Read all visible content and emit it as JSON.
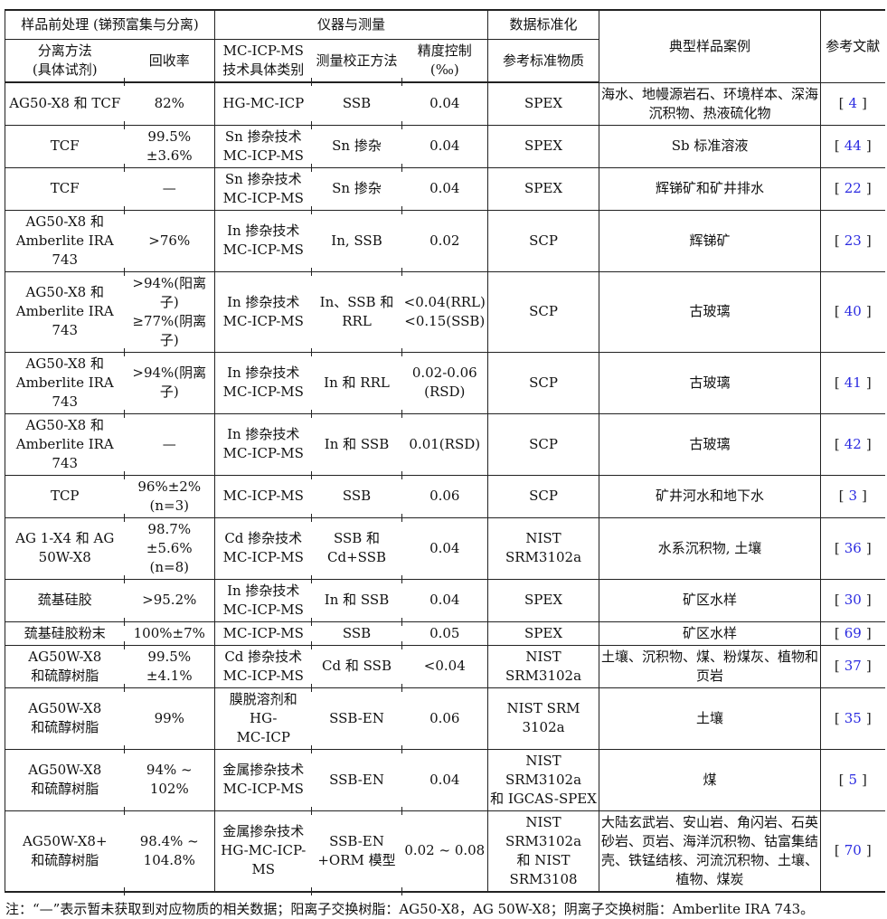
{
  "colors": {
    "reference_link": "#2a2ae0",
    "border": "#222222",
    "text": "#111111",
    "background": "#ffffff"
  },
  "ref_style": {
    "open": "[",
    "close": "]"
  },
  "table": {
    "header": {
      "groups": {
        "pretreatment": "样品前处理 (锑预富集与分离)",
        "instrument": "仪器与测量",
        "standardization": "数据标准化",
        "samples": "典型样品案例",
        "reference": "参考文献"
      },
      "columns": {
        "method": "分离方法\n(具体试剂)",
        "recovery": "回收率",
        "technique": "MC-ICP-MS\n技术具体类别",
        "correction": "测量校正方法",
        "precision": "精度控制\n(‰)",
        "standard": "参考标准物质"
      }
    },
    "rows": [
      {
        "method": "AG50-X8 和 TCF",
        "recovery": "82%",
        "technique": "HG-MC-ICP",
        "correction": "SSB",
        "precision": "0.04",
        "standard": "SPEX",
        "samples": "海水、地幔源岩石、环境样本、深海\n沉积物、热液硫化物",
        "ref": "4"
      },
      {
        "method": "TCF",
        "recovery": "99.5%±3.6%",
        "technique": "Sn 掺杂技术\nMC-ICP-MS",
        "correction": "Sn 掺杂",
        "precision": "0.04",
        "standard": "SPEX",
        "samples": "Sb 标准溶液",
        "ref": "44"
      },
      {
        "method": "TCF",
        "recovery": "—",
        "technique": "Sn 掺杂技术\nMC-ICP-MS",
        "correction": "Sn 掺杂",
        "precision": "0.04",
        "standard": "SPEX",
        "samples": "辉锑矿和矿井排水",
        "ref": "22"
      },
      {
        "method": "AG50-X8 和\nAmberlite IRA\n743",
        "recovery": ">76%",
        "technique": "In 掺杂技术\nMC-ICP-MS",
        "correction": "In, SSB",
        "precision": "0.02",
        "standard": "SCP",
        "samples": "辉锑矿",
        "ref": "23"
      },
      {
        "method": "AG50-X8 和\nAmberlite IRA\n743",
        "recovery": ">94%(阳离子)\n≥77%(阴离子)",
        "technique": "In 掺杂技术\nMC-ICP-MS",
        "correction": "In、SSB 和\nRRL",
        "precision": "<0.04(RRL)\n<0.15(SSB)",
        "standard": "SCP",
        "samples": "古玻璃",
        "ref": "40"
      },
      {
        "method": "AG50-X8 和\nAmberlite IRA\n743",
        "recovery": ">94%(阴离子)",
        "technique": "In 掺杂技术\nMC-ICP-MS",
        "correction": "In 和 RRL",
        "precision": "0.02-0.06\n(RSD)",
        "standard": "SCP",
        "samples": "古玻璃",
        "ref": "41"
      },
      {
        "method": "AG50-X8 和\nAmberlite IRA\n743",
        "recovery": "—",
        "technique": "In 掺杂技术\nMC-ICP-MS",
        "correction": "In 和 SSB",
        "precision": "0.01(RSD)",
        "standard": "SCP",
        "samples": "古玻璃",
        "ref": "42"
      },
      {
        "method": "TCP",
        "recovery": "96%±2%(n=3)",
        "technique": "MC-ICP-MS",
        "correction": "SSB",
        "precision": "0.06",
        "standard": "SCP",
        "samples": "矿井河水和地下水",
        "ref": "3"
      },
      {
        "method": "AG 1-X4 和 AG\n50W-X8",
        "recovery": "98.7%±5.6%\n(n=8)",
        "technique": "Cd 掺杂技术\nMC-ICP-MS",
        "correction": "SSB 和\nCd+SSB",
        "precision": "0.04",
        "standard": "NIST SRM3102a",
        "samples": "水系沉积物, 土壤",
        "ref": "36"
      },
      {
        "method": "巯基硅胶",
        "recovery": ">95.2%",
        "technique": "In 掺杂技术\nMC-ICP-MS",
        "correction": "In 和 SSB",
        "precision": "0.04",
        "standard": "SPEX",
        "samples": "矿区水样",
        "ref": "30"
      },
      {
        "method": "巯基硅胶粉末",
        "recovery": "100%±7%",
        "technique": "MC-ICP-MS",
        "correction": "SSB",
        "precision": "0.05",
        "standard": "SPEX",
        "samples": "矿区水样",
        "ref": "69"
      },
      {
        "method": "AG50W-X8\n和硫醇树脂",
        "recovery": "99.5%±4.1%",
        "technique": "Cd 掺杂技术\nMC-ICP-MS",
        "correction": "Cd 和 SSB",
        "precision": "<0.04",
        "standard": "NIST SRM3102a",
        "samples": "土壤、沉积物、煤、粉煤灰、植物和\n页岩",
        "ref": "37"
      },
      {
        "method": "AG50W-X8\n和硫醇树脂",
        "recovery": "99%",
        "technique": "膜脱溶剂和 HG-\nMC-ICP",
        "correction": "SSB-EN",
        "precision": "0.06",
        "standard": "NIST SRM 3102a",
        "samples": "土壤",
        "ref": "35"
      },
      {
        "method": "AG50W-X8\n和硫醇树脂",
        "recovery": "94% ~ 102%",
        "technique": "金属掺杂技术\nMC-ICP-MS",
        "correction": "SSB-EN",
        "precision": "0.04",
        "standard": "NIST SRM3102a\n和 IGCAS-SPEX",
        "samples": "煤",
        "ref": "5"
      },
      {
        "method": "AG50W-X8+\n和硫醇树脂",
        "recovery": "98.4% ~ 104.8%",
        "technique": "金属掺杂技术\nHG-MC-ICP-MS",
        "correction": "SSB-EN\n+ORM 模型",
        "precision": "0.02 ~ 0.08",
        "standard": "NIST SRM3102a\n和 NIST SRM3108",
        "samples": "大陆玄武岩、安山岩、角闪岩、石英\n砂岩、页岩、海洋沉积物、钴富集结\n壳、铁锰结核、河流沉积物、土壤、\n植物、煤炭",
        "ref": "70"
      }
    ]
  },
  "note": "注：“—”表示暂未获取到对应物质的相关数据；阳离子交换树脂：AG50-X8，AG 50W-X8；阴离子交换树脂：Amberlite IRA 743。"
}
